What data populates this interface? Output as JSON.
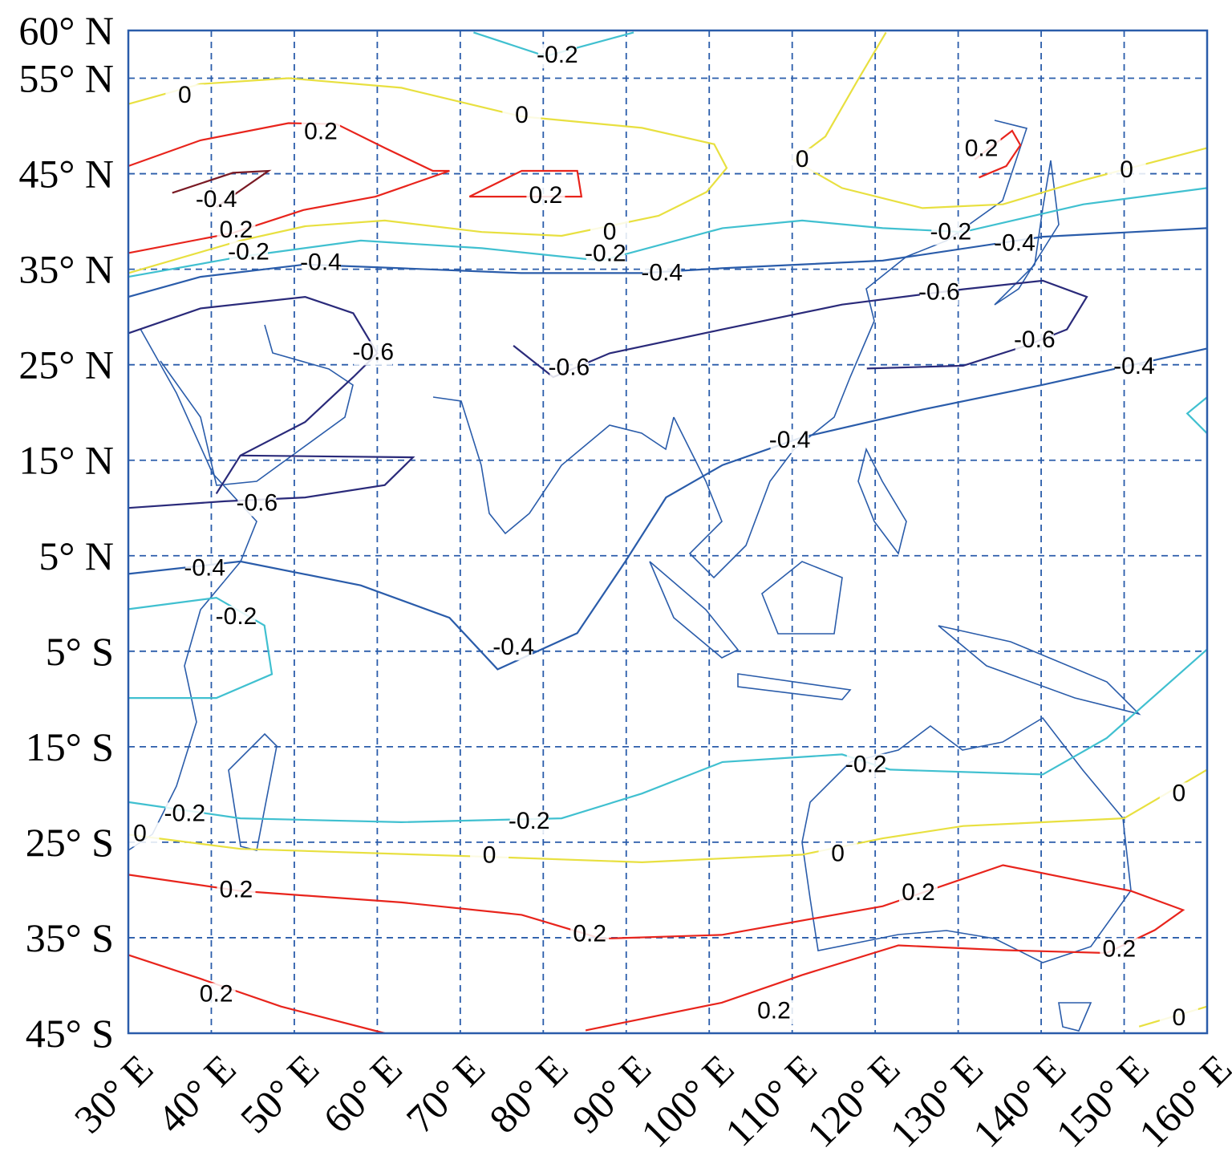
{
  "chart_data": {
    "type": "contour-map",
    "xlim": [
      30,
      160
    ],
    "ylim": [
      -45,
      60
    ],
    "xticks": [
      {
        "value": 30,
        "label": "30° E"
      },
      {
        "value": 40,
        "label": "40° E"
      },
      {
        "value": 50,
        "label": "50° E"
      },
      {
        "value": 60,
        "label": "60° E"
      },
      {
        "value": 70,
        "label": "70° E"
      },
      {
        "value": 80,
        "label": "80° E"
      },
      {
        "value": 90,
        "label": "90° E"
      },
      {
        "value": 100,
        "label": "100° E"
      },
      {
        "value": 110,
        "label": "110° E"
      },
      {
        "value": 120,
        "label": "120° E"
      },
      {
        "value": 130,
        "label": "130° E"
      },
      {
        "value": 140,
        "label": "140° E"
      },
      {
        "value": 150,
        "label": "150° E"
      },
      {
        "value": 160,
        "label": "160° E"
      }
    ],
    "yticks": [
      {
        "value": 60,
        "label": "60° N"
      },
      {
        "value": 55,
        "label": "55° N"
      },
      {
        "value": 45,
        "label": "45° N"
      },
      {
        "value": 35,
        "label": "35° N"
      },
      {
        "value": 25,
        "label": "25° N"
      },
      {
        "value": 15,
        "label": "15° N"
      },
      {
        "value": 5,
        "label": "5° N"
      },
      {
        "value": -5,
        "label": "5° S"
      },
      {
        "value": -15,
        "label": "15° S"
      },
      {
        "value": -25,
        "label": "25° S"
      },
      {
        "value": -35,
        "label": "35° S"
      },
      {
        "value": -45,
        "label": "45° S"
      }
    ],
    "grid": true,
    "contours": [
      {
        "level": 0.2,
        "color": "#e8241c",
        "x": [
          30,
          38.7,
          49.3,
          55.1,
          60.9,
          66.7,
          68.7,
          59.8,
          51.1,
          42.6,
          30
        ],
        "y": [
          45.8,
          48.5,
          50.3,
          50.2,
          47.7,
          45.3,
          45.3,
          42.6,
          41.2,
          38.8,
          36.7
        ],
        "label_x": [
          53.2,
          43
        ],
        "label_y": [
          49.3,
          39
        ]
      },
      {
        "level": 0.2,
        "color": "#e8241c",
        "x": [
          71.1,
          77.4,
          84.1,
          84.6,
          71.1
        ],
        "y": [
          42.6,
          45.3,
          45.3,
          42.6,
          42.6
        ],
        "label_x": [
          80.3
        ],
        "label_y": [
          42.6
        ]
      },
      {
        "level": 0.2,
        "color": "#e8241c",
        "x": [
          132,
          136.5,
          137.5,
          135.8,
          132.5
        ],
        "y": [
          46.5,
          49.5,
          48,
          45.8,
          44.6
        ],
        "label_x": [
          132.8
        ],
        "label_y": [
          47.5
        ]
      },
      {
        "level": -0.4,
        "color": "#7a1a24",
        "x": [
          35.3,
          42.6,
          46.9,
          40.6
        ],
        "y": [
          43,
          45.1,
          45.3,
          41.5
        ],
        "label_x": [
          40.6
        ],
        "label_y": [
          42.2
        ]
      },
      {
        "level": 0,
        "color": "#e8e040",
        "x": [
          30,
          38.7,
          49.3,
          62.9,
          77.3,
          91.9,
          100.6,
          102.1,
          99.7,
          93.9,
          82.2,
          72.6,
          60.9,
          51.3,
          43.5,
          30
        ],
        "y": [
          52.3,
          54.4,
          55,
          54,
          51,
          49.8,
          48.1,
          45.6,
          43.1,
          40.6,
          38.5,
          38.9,
          40.1,
          39.5,
          38,
          34.6
        ],
        "label_x": [
          36.8,
          77.4,
          88
        ],
        "label_y": [
          53.1,
          51,
          38.8
        ]
      },
      {
        "level": 0,
        "color": "#e8e040",
        "x": [
          121.3,
          117.9,
          114,
          110.2,
          116,
          125.7,
          135.4,
          145,
          160
        ],
        "y": [
          59.8,
          54.8,
          48.9,
          46.4,
          43.5,
          41.4,
          41.8,
          44.3,
          47.7
        ],
        "label_x": [
          111.2,
          150.3
        ],
        "label_y": [
          46.4,
          45.3
        ]
      },
      {
        "level": -0.2,
        "color": "#40c0d0",
        "x": [
          71.6,
          80.3,
          90.9
        ],
        "y": [
          59.8,
          57.3,
          59.8
        ],
        "label_x": [
          81.7
        ],
        "label_y": [
          57.3
        ]
      },
      {
        "level": -0.2,
        "color": "#40c0d0",
        "x": [
          30,
          43.5,
          58,
          72.6,
          87,
          101.6,
          111.2,
          120.9,
          130.6,
          145.1,
          160
        ],
        "y": [
          34.2,
          36.3,
          38,
          37.2,
          35.9,
          39.3,
          40.1,
          39.3,
          38.9,
          41.8,
          43.5
        ],
        "label_x": [
          44.5,
          87.5,
          129.1
        ],
        "label_y": [
          36.7,
          36.5,
          38.8
        ]
      },
      {
        "level": -0.4,
        "color": "#2a5caa",
        "x": [
          30,
          38.7,
          51.3,
          62.9,
          77.3,
          91.9,
          101.5,
          120.9,
          140.2,
          160
        ],
        "y": [
          32.1,
          34.2,
          35.5,
          35.1,
          34.6,
          34.6,
          35.1,
          35.9,
          38.4,
          39.3
        ],
        "label_x": [
          53.2,
          94.3,
          136.8
        ],
        "label_y": [
          35.6,
          34.5,
          37.6
        ]
      },
      {
        "level": -0.6,
        "color": "#2a2a7a",
        "x": [
          30,
          38.7,
          51.3,
          57.1,
          60,
          57.1,
          51.3,
          43.5,
          40.6
        ],
        "y": [
          28.3,
          30.9,
          32.1,
          30.4,
          26.2,
          23.7,
          19,
          15.5,
          11.5
        ],
        "label_x": [
          59.5
        ],
        "label_y": [
          26.2
        ]
      },
      {
        "level": -0.6,
        "color": "#2a2a7a",
        "x": [
          43.5,
          64.3,
          60.9,
          51.3,
          41.6,
          30
        ],
        "y": [
          15.5,
          15.3,
          12.4,
          11.1,
          10.7,
          10
        ],
        "label_x": [
          45.5
        ],
        "label_y": [
          10.4
        ]
      },
      {
        "level": -0.6,
        "color": "#2a2a7a",
        "x": [
          76.4,
          81.2,
          88,
          101.6,
          116,
          130.6,
          140.2,
          145.5,
          143.1,
          138.2,
          130.6,
          119
        ],
        "y": [
          27,
          23.7,
          26.2,
          28.7,
          31.3,
          32.9,
          33.8,
          32.1,
          28.7,
          27,
          24.9,
          24.6
        ],
        "label_x": [
          83.1,
          127.7,
          139.2
        ],
        "label_y": [
          24.6,
          32.5,
          27.5
        ]
      },
      {
        "level": -0.4,
        "color": "#2a5caa",
        "x": [
          30,
          43.5,
          58,
          68.7,
          74.5,
          84.1,
          89.9,
          94.8,
          101.6,
          111.2,
          125.7,
          140.2,
          160
        ],
        "y": [
          3.1,
          4.4,
          1.9,
          -1.5,
          -6.9,
          -3.1,
          4.4,
          11.1,
          14.5,
          17.4,
          20.3,
          22.9,
          26.7
        ],
        "label_x": [
          39.2,
          76.4,
          109.7,
          151.2
        ],
        "label_y": [
          3.6,
          -4.7,
          17,
          24.7
        ]
      },
      {
        "level": -0.2,
        "color": "#40c0d0",
        "x": [
          30,
          40.6,
          46.4,
          47.3,
          40.6,
          30
        ],
        "y": [
          -0.6,
          0.6,
          -2.3,
          -7.4,
          -9.9,
          -9.9
        ],
        "label_x": [
          43
        ],
        "label_y": [
          -1.5
        ]
      },
      {
        "level": -0.2,
        "color": "#40c0d0",
        "x": [
          160,
          157.6,
          160
        ],
        "y": [
          21.6,
          19.9,
          17.8
        ],
        "label_x": [],
        "label_y": []
      },
      {
        "level": -0.2,
        "color": "#40c0d0",
        "x": [
          30,
          43.5,
          62.9,
          82.2,
          91.9,
          101.6,
          116,
          121.8,
          140.2,
          147.9,
          160
        ],
        "y": [
          -20.8,
          -22.5,
          -22.9,
          -22.5,
          -19.9,
          -16.6,
          -15.8,
          -17.4,
          -17.9,
          -14.1,
          -4.8
        ],
        "label_x": [
          36.8,
          78.3,
          118.9
        ],
        "label_y": [
          -22.1,
          -22.9,
          -17
        ]
      },
      {
        "level": 0,
        "color": "#e8e040",
        "x": [
          30,
          43.5,
          72.6,
          91.9,
          111.2,
          120.9,
          130.6,
          150,
          160
        ],
        "y": [
          -24.2,
          -25.7,
          -26.5,
          -27.1,
          -26.3,
          -24.6,
          -23.3,
          -22.5,
          -17.4
        ],
        "label_x": [
          31.4,
          73.5,
          115.5,
          156.6
        ],
        "label_y": [
          -24.2,
          -26.5,
          -26.3,
          -20
        ]
      },
      {
        "level": 0,
        "color": "#e8e040",
        "x": [
          151.8,
          160
        ],
        "y": [
          -44.3,
          -42.2
        ],
        "label_x": [
          156.6
        ],
        "label_y": [
          -43.5
        ]
      },
      {
        "level": 0.2,
        "color": "#e8241c",
        "x": [
          30,
          43.5,
          62.9,
          77.4,
          87,
          101.5,
          120.9,
          135.4,
          150.8,
          157.1,
          153.7,
          147.9,
          135.4,
          122.8,
          111.2,
          101.5,
          85.1
        ],
        "y": [
          -28.4,
          -30.1,
          -31.3,
          -32.6,
          -35.1,
          -34.7,
          -31.7,
          -27.4,
          -30.1,
          -32.1,
          -34.2,
          -36.6,
          -36.3,
          -35.8,
          -38.9,
          -41.8,
          -44.7
        ],
        "label_x": [
          43,
          85.6,
          125.2,
          149.4,
          107.8
        ],
        "label_y": [
          -30.1,
          -34.7,
          -30.4,
          -36.3,
          -42.8
        ]
      },
      {
        "level": 0.2,
        "color": "#e8241c",
        "x": [
          30,
          38.7,
          48.4,
          60.9
        ],
        "y": [
          -36.8,
          -39.3,
          -42.2,
          -45
        ],
        "label_x": [
          40.6
        ],
        "label_y": [
          -41
        ]
      }
    ]
  }
}
